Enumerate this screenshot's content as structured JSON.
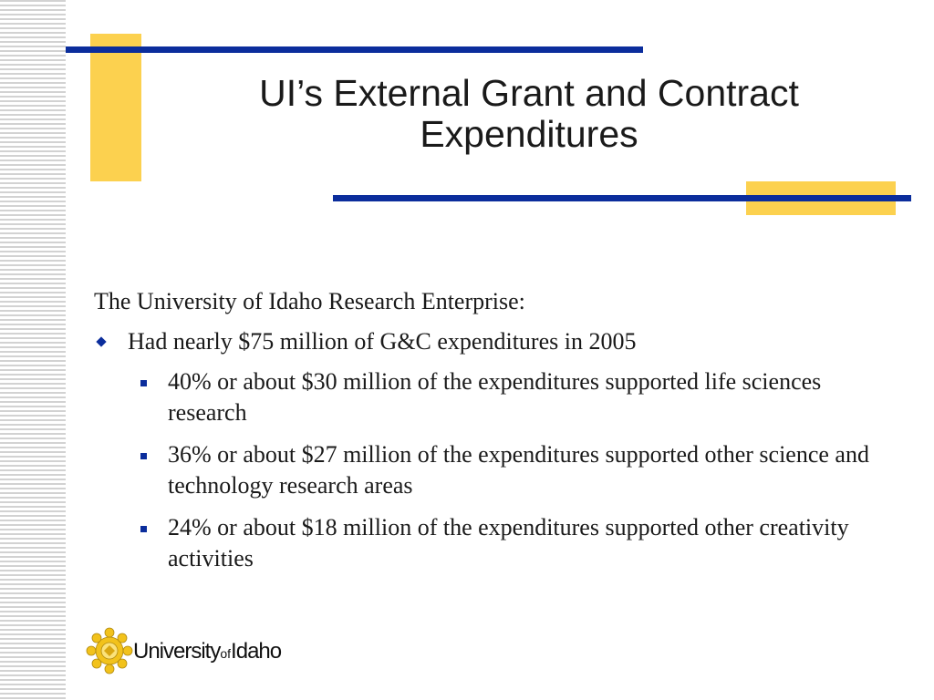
{
  "slide": {
    "title_line1": "UI’s External Grant and Contract",
    "title_line2": "Expenditures",
    "intro": "The University of Idaho Research Enterprise:",
    "level1": "Had nearly $75 million of G&C expenditures in 2005",
    "level2": [
      "40% or about $30 million of the expenditures supported life sciences research",
      "36% or about $27 million of the expenditures supported other science and technology research areas",
      "24% or about $18 million of the expenditures supported other creativity activities"
    ]
  },
  "logo": {
    "word1": "University",
    "word2": "of",
    "word3": "Idaho",
    "icon": "gold-seal-icon"
  },
  "colors": {
    "accent_blue": "#0b2d9c",
    "accent_gold": "#fcd14f",
    "text": "#1a1a1a"
  },
  "icons": {
    "level1_bullet": "diamond-bullet-icon",
    "level2_bullet": "square-bullet-icon"
  }
}
